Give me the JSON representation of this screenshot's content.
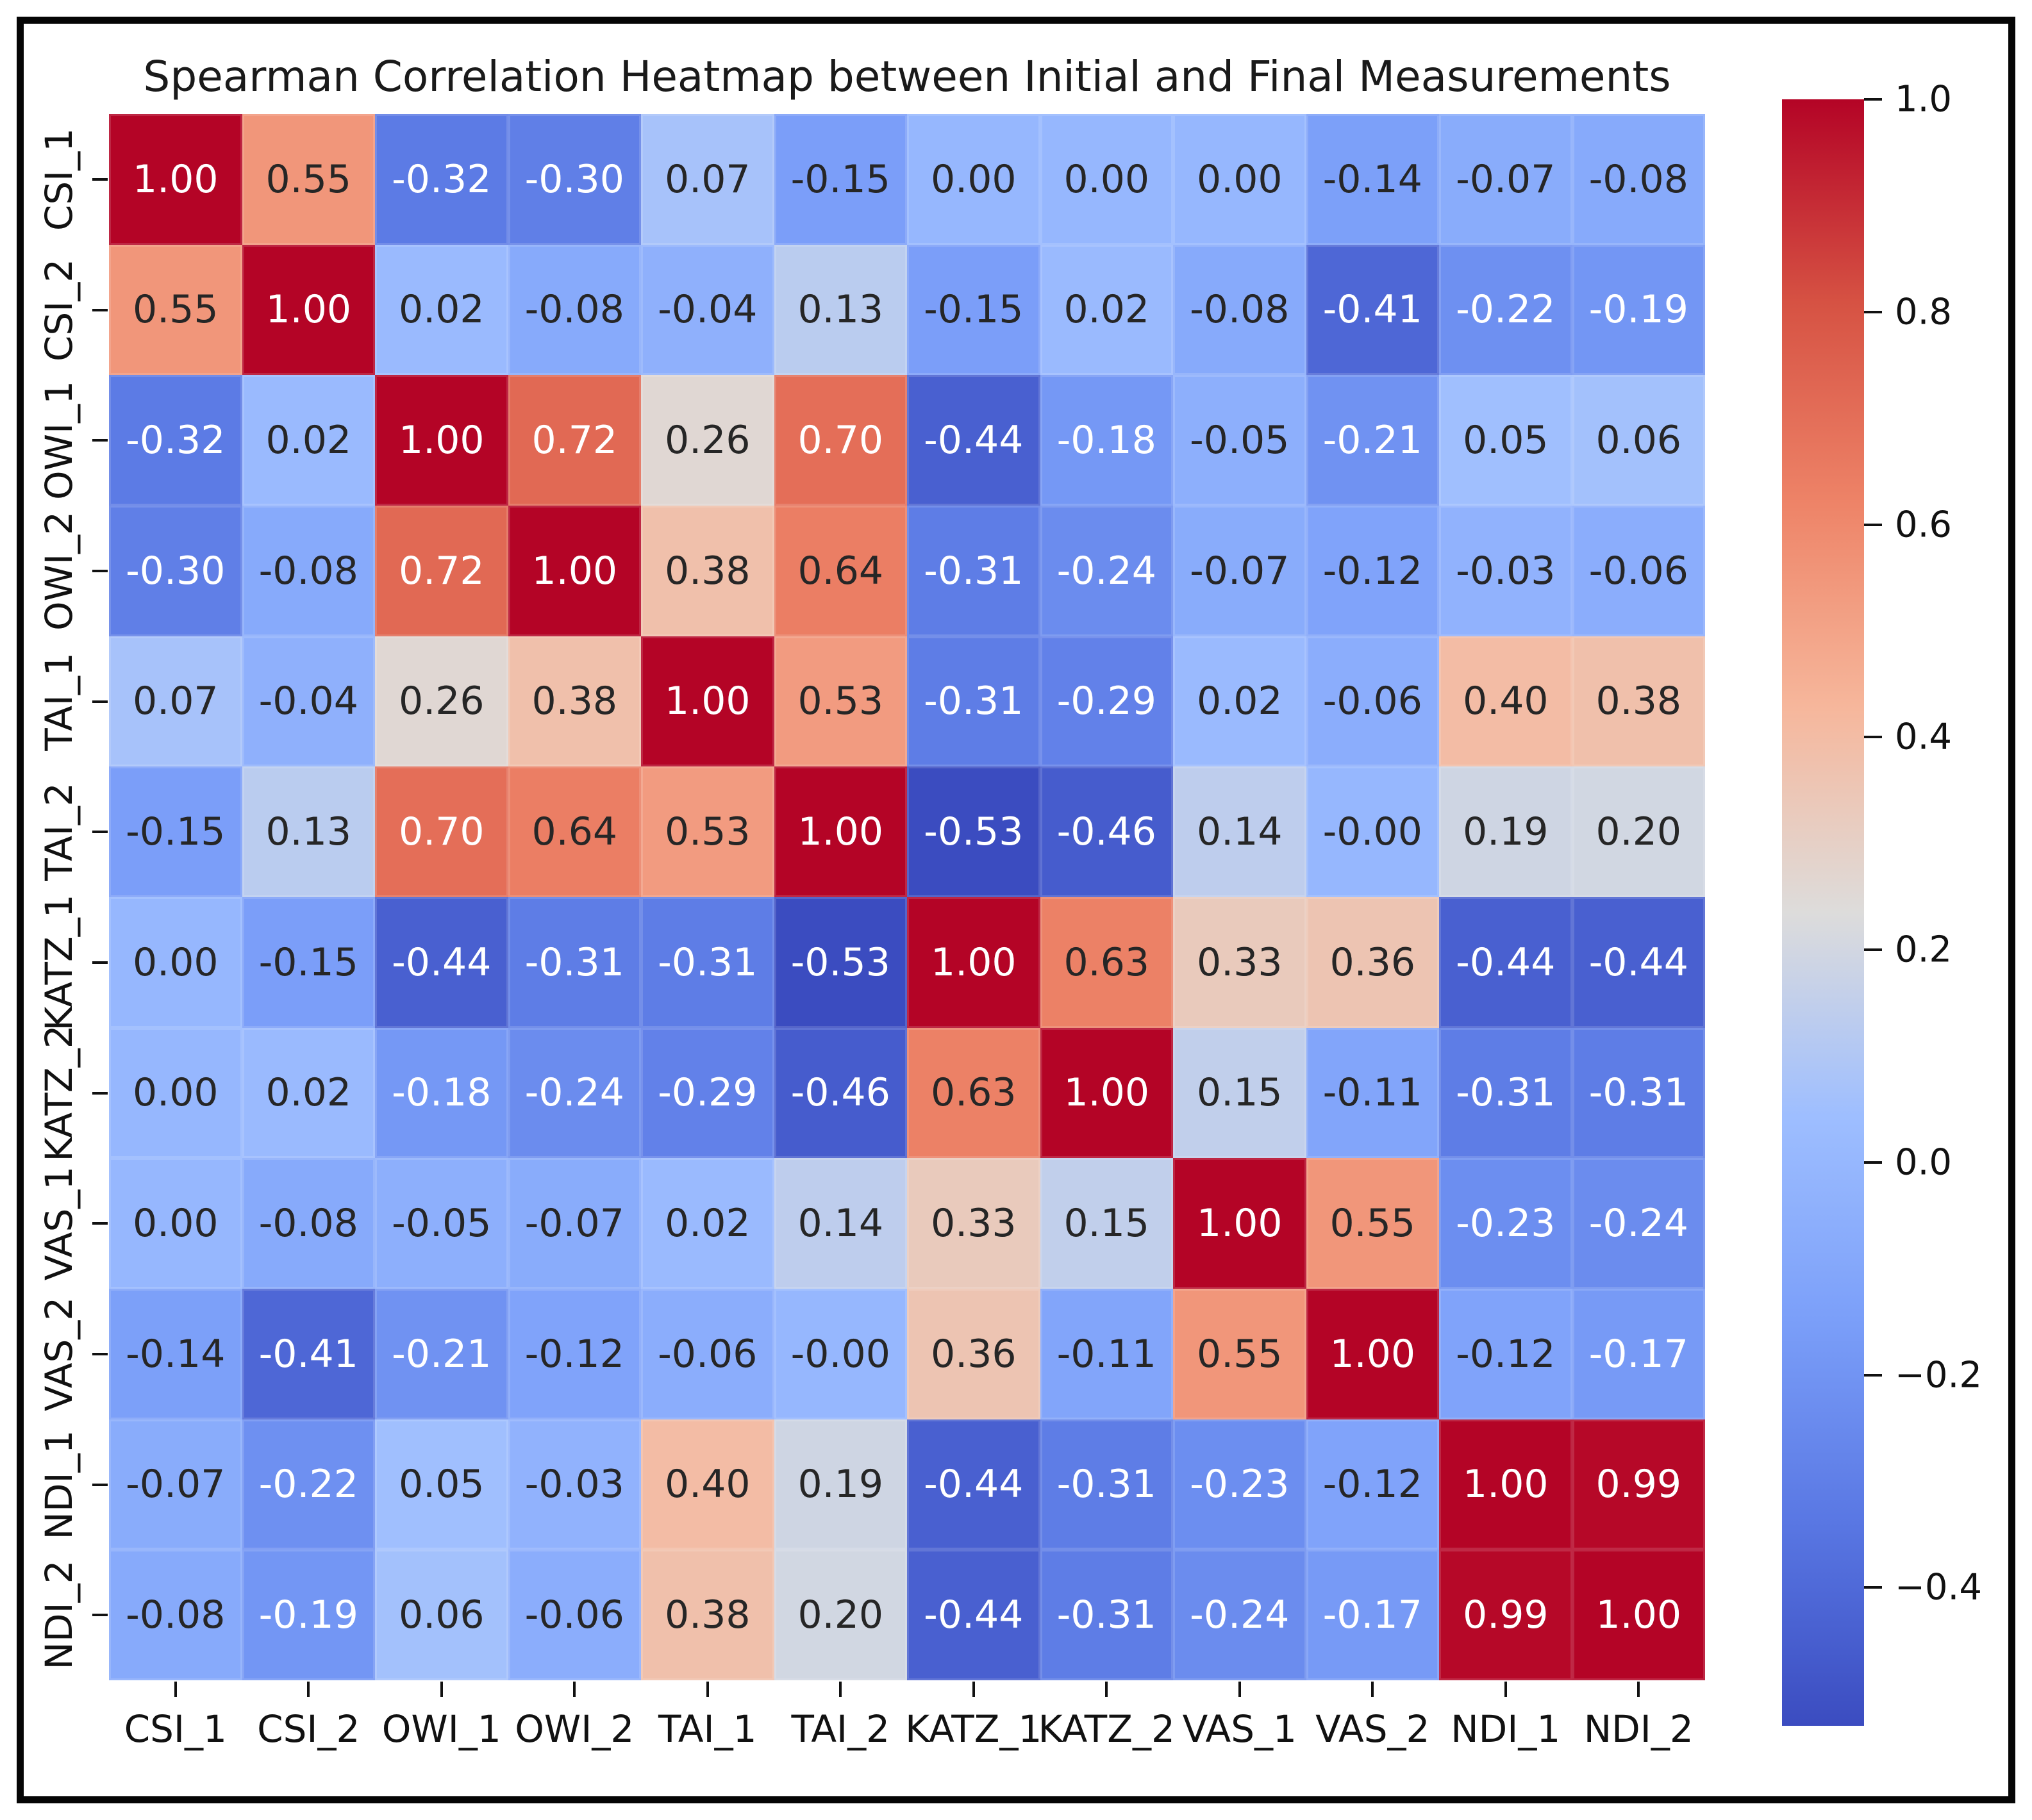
{
  "chart_data": {
    "type": "heatmap",
    "title": "Spearman Correlation Heatmap between Initial and Final Measurements",
    "x_labels": [
      "CSI_1",
      "CSI_2",
      "OWI_1",
      "OWI_2",
      "TAI_1",
      "TAI_2",
      "KATZ_1",
      "KATZ_2",
      "VAS_1",
      "VAS_2",
      "NDI_1",
      "NDI_2"
    ],
    "y_labels": [
      "CSI_1",
      "CSI_2",
      "OWI_1",
      "OWI_2",
      "TAI_1",
      "TAI_2",
      "KATZ_1",
      "KATZ_2",
      "VAS_1",
      "VAS_2",
      "NDI_1",
      "NDI_2"
    ],
    "matrix": [
      [
        "1.00",
        "0.55",
        "-0.32",
        "-0.30",
        "0.07",
        "-0.15",
        "0.00",
        "0.00",
        "0.00",
        "-0.14",
        "-0.07",
        "-0.08"
      ],
      [
        "0.55",
        "1.00",
        "0.02",
        "-0.08",
        "-0.04",
        "0.13",
        "-0.15",
        "0.02",
        "-0.08",
        "-0.41",
        "-0.22",
        "-0.19"
      ],
      [
        "-0.32",
        "0.02",
        "1.00",
        "0.72",
        "0.26",
        "0.70",
        "-0.44",
        "-0.18",
        "-0.05",
        "-0.21",
        "0.05",
        "0.06"
      ],
      [
        "-0.30",
        "-0.08",
        "0.72",
        "1.00",
        "0.38",
        "0.64",
        "-0.31",
        "-0.24",
        "-0.07",
        "-0.12",
        "-0.03",
        "-0.06"
      ],
      [
        "0.07",
        "-0.04",
        "0.26",
        "0.38",
        "1.00",
        "0.53",
        "-0.31",
        "-0.29",
        "0.02",
        "-0.06",
        "0.40",
        "0.38"
      ],
      [
        "-0.15",
        "0.13",
        "0.70",
        "0.64",
        "0.53",
        "1.00",
        "-0.53",
        "-0.46",
        "0.14",
        "-0.00",
        "0.19",
        "0.20"
      ],
      [
        "0.00",
        "-0.15",
        "-0.44",
        "-0.31",
        "-0.31",
        "-0.53",
        "1.00",
        "0.63",
        "0.33",
        "0.36",
        "-0.44",
        "-0.44"
      ],
      [
        "0.00",
        "0.02",
        "-0.18",
        "-0.24",
        "-0.29",
        "-0.46",
        "0.63",
        "1.00",
        "0.15",
        "-0.11",
        "-0.31",
        "-0.31"
      ],
      [
        "0.00",
        "-0.08",
        "-0.05",
        "-0.07",
        "0.02",
        "0.14",
        "0.33",
        "0.15",
        "1.00",
        "0.55",
        "-0.23",
        "-0.24"
      ],
      [
        "-0.14",
        "-0.41",
        "-0.21",
        "-0.12",
        "-0.06",
        "-0.00",
        "0.36",
        "-0.11",
        "0.55",
        "1.00",
        "-0.12",
        "-0.17"
      ],
      [
        "-0.07",
        "-0.22",
        "0.05",
        "-0.03",
        "0.40",
        "0.19",
        "-0.44",
        "-0.31",
        "-0.23",
        "-0.12",
        "1.00",
        "0.99"
      ],
      [
        "-0.08",
        "-0.19",
        "0.06",
        "-0.06",
        "0.38",
        "0.20",
        "-0.44",
        "-0.31",
        "-0.24",
        "-0.17",
        "0.99",
        "1.00"
      ]
    ],
    "color_scale": {
      "colormap": "coolwarm",
      "vmin": -0.53,
      "vmax": 1.0
    },
    "colorbar": {
      "ticks": [
        {
          "value": 1.0,
          "label": "1.0"
        },
        {
          "value": 0.8,
          "label": "0.8"
        },
        {
          "value": 0.6,
          "label": "0.6"
        },
        {
          "value": 0.4,
          "label": "0.4"
        },
        {
          "value": 0.2,
          "label": "0.2"
        },
        {
          "value": 0.0,
          "label": "0.0"
        },
        {
          "value": -0.2,
          "label": "−0.2"
        },
        {
          "value": -0.4,
          "label": "−0.4"
        }
      ]
    },
    "layout": {
      "grid": "off",
      "legend": "colorbar-right",
      "annotations": "cell values shown"
    }
  }
}
